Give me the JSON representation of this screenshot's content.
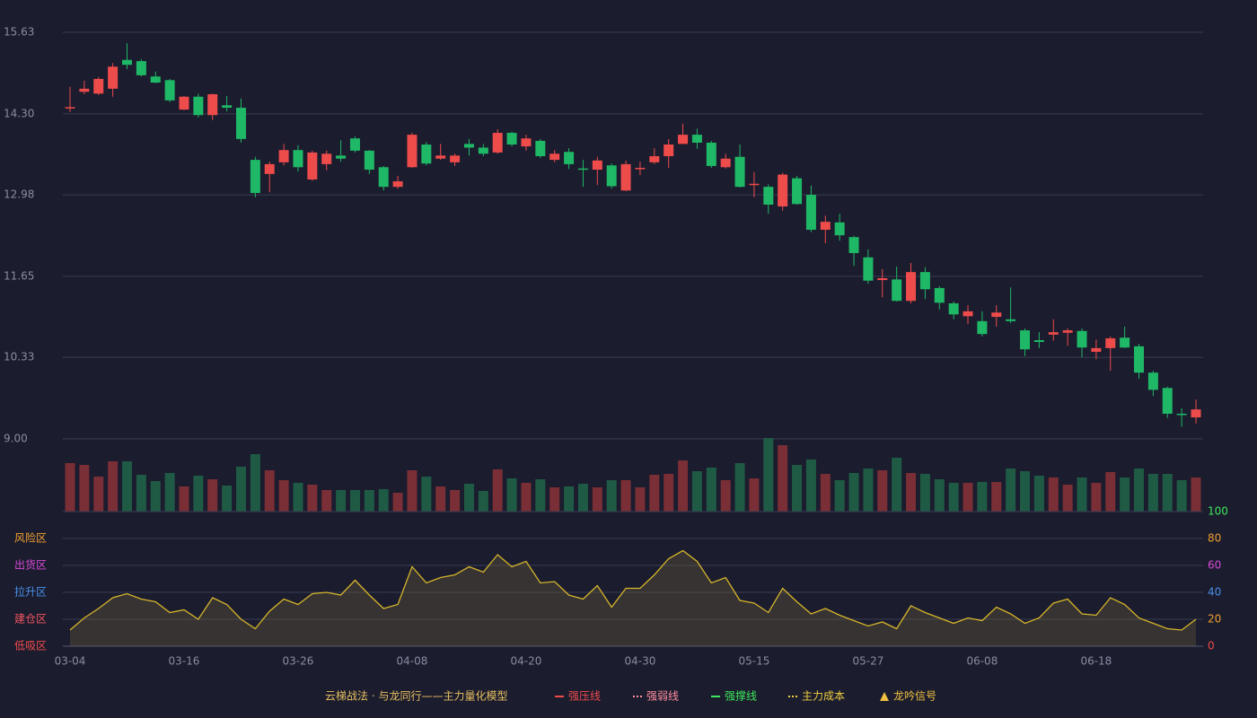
{
  "chart_data": {
    "type": "candlestick",
    "up_color": "#ee4b4b",
    "down_color": "#1fb866",
    "volume_up_color": "#7a2e35",
    "volume_down_color": "#1f5a45",
    "grid": true,
    "categories": [
      "03-04",
      null,
      null,
      null,
      null,
      null,
      null,
      null,
      "03-16",
      null,
      null,
      null,
      null,
      null,
      null,
      null,
      "03-26",
      null,
      null,
      null,
      null,
      null,
      null,
      null,
      "04-08",
      null,
      null,
      null,
      null,
      null,
      null,
      null,
      "04-20",
      null,
      null,
      null,
      null,
      null,
      null,
      null,
      "04-30",
      null,
      null,
      null,
      null,
      null,
      null,
      null,
      "05-15",
      null,
      null,
      null,
      null,
      null,
      null,
      null,
      "05-27",
      null,
      null,
      null,
      null,
      null,
      null,
      null,
      "06-08",
      null,
      null,
      null,
      null,
      null,
      null,
      null,
      "06-18",
      null,
      null,
      null,
      null,
      null,
      null,
      null
    ],
    "open": [
      14.4,
      14.66,
      14.63,
      14.71,
      15.18,
      15.16,
      14.91,
      14.85,
      14.37,
      14.58,
      14.28,
      14.44,
      14.4,
      13.55,
      13.32,
      13.51,
      13.71,
      13.23,
      13.48,
      13.62,
      13.9,
      13.7,
      13.43,
      13.11,
      13.43,
      13.8,
      13.57,
      13.51,
      13.81,
      13.75,
      13.67,
      13.99,
      13.77,
      13.86,
      13.55,
      13.68,
      13.41,
      13.39,
      13.46,
      13.05,
      13.41,
      13.51,
      13.61,
      13.81,
      13.96,
      13.83,
      13.43,
      13.6,
      13.15,
      13.11,
      12.79,
      13.25,
      12.98,
      12.41,
      12.53,
      12.29,
      11.96,
      11.59,
      11.6,
      11.25,
      11.72,
      11.46,
      11.21,
      11.0,
      10.92,
      10.99,
      10.95,
      10.77,
      10.61,
      10.7,
      10.73,
      10.76,
      10.42,
      10.48,
      10.65,
      10.51,
      10.08,
      9.83,
      9.41,
      9.35
    ],
    "high": [
      14.74,
      14.84,
      14.9,
      15.13,
      15.45,
      15.19,
      14.99,
      14.87,
      14.59,
      14.63,
      14.63,
      14.59,
      14.55,
      13.6,
      13.52,
      13.81,
      13.79,
      13.7,
      13.7,
      13.87,
      13.93,
      13.71,
      13.45,
      13.29,
      13.99,
      13.84,
      13.81,
      13.65,
      13.89,
      13.81,
      14.05,
      14.01,
      13.96,
      13.89,
      13.71,
      13.74,
      13.55,
      13.6,
      13.49,
      13.54,
      13.52,
      13.74,
      13.89,
      14.14,
      14.06,
      13.86,
      13.65,
      13.8,
      13.35,
      13.15,
      13.34,
      13.29,
      13.13,
      12.64,
      12.67,
      12.31,
      12.09,
      11.77,
      11.81,
      11.87,
      11.8,
      11.49,
      11.24,
      11.18,
      11.08,
      11.18,
      11.47,
      10.8,
      10.74,
      10.95,
      10.8,
      10.8,
      10.62,
      10.67,
      10.83,
      10.55,
      10.11,
      9.85,
      9.5,
      9.64
    ],
    "low": [
      14.33,
      14.62,
      14.61,
      14.58,
      15.03,
      14.91,
      14.8,
      14.49,
      14.36,
      14.24,
      14.2,
      14.34,
      13.83,
      12.94,
      13.02,
      13.46,
      13.36,
      13.21,
      13.38,
      13.52,
      13.67,
      13.32,
      13.05,
      13.08,
      13.42,
      13.46,
      13.55,
      13.45,
      13.62,
      13.61,
      13.65,
      13.77,
      13.7,
      13.58,
      13.51,
      13.4,
      13.11,
      13.14,
      13.08,
      13.04,
      13.3,
      13.48,
      13.42,
      13.81,
      13.73,
      13.42,
      13.41,
      13.1,
      12.94,
      12.67,
      12.72,
      12.82,
      12.37,
      12.19,
      12.23,
      11.82,
      11.53,
      11.31,
      11.24,
      11.21,
      11.28,
      11.11,
      10.95,
      10.87,
      10.67,
      10.83,
      10.89,
      10.35,
      10.48,
      10.6,
      10.52,
      10.33,
      10.3,
      10.11,
      10.48,
      9.98,
      9.7,
      9.34,
      9.2,
      9.25
    ],
    "close": [
      14.41,
      14.71,
      14.87,
      15.07,
      15.1,
      14.93,
      14.81,
      14.52,
      14.58,
      14.28,
      14.62,
      14.4,
      13.89,
      13.01,
      13.48,
      13.71,
      13.43,
      13.67,
      13.65,
      13.57,
      13.7,
      13.39,
      13.11,
      13.2,
      13.96,
      13.49,
      13.62,
      13.62,
      13.75,
      13.65,
      13.99,
      13.8,
      13.9,
      13.61,
      13.65,
      13.48,
      13.4,
      13.54,
      13.12,
      13.48,
      13.42,
      13.61,
      13.8,
      13.96,
      13.83,
      13.45,
      13.57,
      13.11,
      13.16,
      12.82,
      13.31,
      12.83,
      12.41,
      12.54,
      12.32,
      12.03,
      11.58,
      11.62,
      11.25,
      11.72,
      11.44,
      11.22,
      11.03,
      11.08,
      10.71,
      11.06,
      10.92,
      10.46,
      10.58,
      10.74,
      10.77,
      10.49,
      10.48,
      10.64,
      10.49,
      10.08,
      9.8,
      9.41,
      9.39,
      9.48
    ],
    "volume": [
      54,
      52,
      39,
      56,
      56,
      41,
      34,
      43,
      28,
      40,
      36,
      29,
      50,
      64,
      46,
      35,
      32,
      30,
      24,
      24,
      24,
      24,
      25,
      21,
      46,
      39,
      28,
      24,
      31,
      23,
      47,
      37,
      32,
      36,
      27,
      28,
      31,
      27,
      35,
      35,
      27,
      41,
      42,
      57,
      45,
      49,
      35,
      54,
      37,
      82,
      74,
      52,
      58,
      42,
      35,
      43,
      48,
      46,
      60,
      43,
      42,
      36,
      32,
      32,
      33,
      33,
      48,
      45,
      40,
      38,
      30,
      38,
      32,
      44,
      38,
      48,
      42,
      42,
      35,
      38
    ],
    "ylim": [
      9,
      15.63
    ],
    "yticks": [
      {
        "value": 9,
        "label": "9.00"
      },
      10.33,
      11.65,
      12.98,
      {
        "value": 14.3,
        "label": "14.30"
      },
      15.63
    ],
    "indicator": {
      "values": [
        12,
        21,
        28,
        36,
        39,
        35,
        33,
        25,
        27,
        20,
        36,
        31,
        20,
        13,
        26,
        35,
        31,
        39,
        40,
        38,
        49,
        38,
        28,
        31,
        59,
        47,
        51,
        53,
        59,
        55,
        68,
        59,
        63,
        47,
        48,
        38,
        35,
        45,
        29,
        43,
        43,
        53,
        65,
        71,
        63,
        47,
        51,
        34,
        32,
        25,
        43,
        33,
        24,
        28,
        23,
        19,
        15,
        18,
        13,
        30,
        25,
        21,
        17,
        21,
        19,
        29,
        24,
        17,
        21,
        32,
        35,
        24,
        23,
        36,
        31,
        21,
        17,
        13,
        12,
        20
      ],
      "color": "#d6b52a",
      "ylim": [
        0,
        100
      ],
      "yticks": [
        0,
        20,
        40,
        60,
        80,
        100
      ],
      "ytick_colors": [
        "#ee4b4b",
        "#f0a030",
        "#4a8fe8",
        "#d64ad6",
        "#f0a030",
        "#3ee85a"
      ],
      "zones": [
        {
          "label": "风险区",
          "value": 80,
          "color": "#f0a030"
        },
        {
          "label": "出货区",
          "value": 60,
          "color": "#d64ad6"
        },
        {
          "label": "拉升区",
          "value": 40,
          "color": "#4a8fe8"
        },
        {
          "label": "建仓区",
          "value": 20,
          "color": "#ee5560"
        },
        {
          "label": "低吸区",
          "value": 0,
          "color": "#ee4b4b"
        }
      ]
    },
    "legend": {
      "title": "云梯战法 · 与龙同行——主力量化模型",
      "items": [
        {
          "name": "强压线",
          "color": "#ee4b4b",
          "style": "solid"
        },
        {
          "name": "强弱线",
          "color": "#ff8fa0",
          "style": "dash"
        },
        {
          "name": "强撑线",
          "color": "#3ee85a",
          "style": "solid"
        },
        {
          "name": "主力成本",
          "color": "#f0d040",
          "style": "dash"
        },
        {
          "name": "龙吟信号",
          "color": "#f0c040",
          "style": "triangle"
        }
      ]
    }
  }
}
